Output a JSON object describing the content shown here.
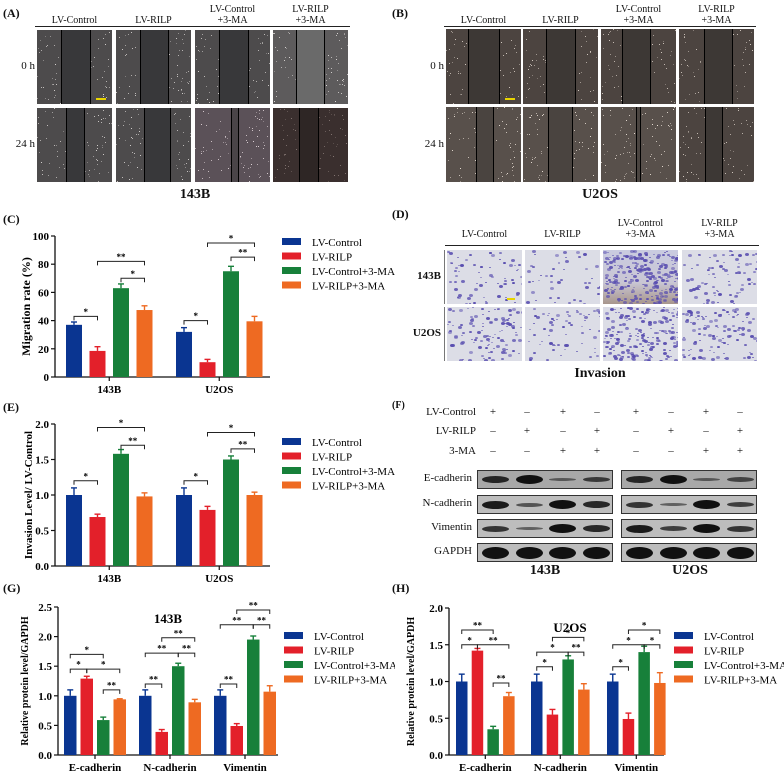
{
  "colors": {
    "lv_control": "#0a3591",
    "lv_rilp": "#e3202a",
    "lv_control_3ma": "#17803a",
    "lv_rilp_3ma": "#ee6a22",
    "scale_bar": "#e8d400"
  },
  "groups": [
    "LV-Control",
    "LV-RILP",
    "LV-Control\n+3-MA",
    "LV-RILP\n+3-MA"
  ],
  "panel_a": {
    "label": "(A)",
    "columns": [
      "LV-Control",
      "LV-RILP",
      "LV-Control",
      "LV-RILP"
    ],
    "columns_sub": [
      "",
      "",
      "+3-MA",
      "+3-MA"
    ],
    "rows": [
      "0 h",
      "24 h"
    ],
    "title": "143B"
  },
  "panel_b": {
    "label": "(B)",
    "columns": [
      "LV-Control",
      "LV-RILP",
      "LV-Control",
      "LV-RILP"
    ],
    "columns_sub": [
      "",
      "",
      "+3-MA",
      "+3-MA"
    ],
    "rows": [
      "0 h",
      "24 h"
    ],
    "title": "U2OS"
  },
  "panel_c": {
    "label": "(C)"
  },
  "panel_d": {
    "label": "(D)",
    "columns": [
      "LV-Control",
      "LV-RILP",
      "LV-Control",
      "LV-RILP"
    ],
    "columns_sub": [
      "",
      "",
      "+3-MA",
      "+3-MA"
    ],
    "rows": [
      "143B",
      "U2OS"
    ],
    "title": "Invasion"
  },
  "panel_e": {
    "label": "(E)"
  },
  "panel_f": {
    "label": "(F)",
    "conditions": [
      {
        "name": "LV-Control",
        "signs": [
          "+",
          "–",
          "+",
          "–",
          "+",
          "–",
          "+",
          "–"
        ]
      },
      {
        "name": "LV-RILP",
        "signs": [
          "–",
          "+",
          "–",
          "+",
          "–",
          "+",
          "–",
          "+"
        ]
      },
      {
        "name": "3-MA",
        "signs": [
          "–",
          "–",
          "+",
          "+",
          "–",
          "–",
          "+",
          "+"
        ]
      }
    ],
    "proteins": [
      "E-cadherin",
      "N-cadherin",
      "Vimentin",
      "GAPDH"
    ],
    "cell_lines": [
      "143B",
      "U2OS"
    ]
  },
  "panel_g": {
    "label": "(G)"
  },
  "panel_h": {
    "label": "(H)"
  },
  "legend": [
    "LV-Control",
    "LV-RILP",
    "LV-Control+3-MA",
    "LV-RILP+3-MA"
  ],
  "chart_data": [
    {
      "id": "C",
      "type": "bar",
      "title": "",
      "xlabel": "",
      "ylabel": "Migration rate (%)",
      "categories": [
        "143B",
        "U2OS"
      ],
      "ylim": [
        0,
        100
      ],
      "yticks": [
        0,
        20,
        40,
        60,
        80,
        100
      ],
      "series": [
        {
          "name": "LV-Control",
          "values": [
            37,
            32
          ],
          "errors": [
            2,
            3
          ]
        },
        {
          "name": "LV-RILP",
          "values": [
            18.5,
            10.5
          ],
          "errors": [
            3,
            2
          ]
        },
        {
          "name": "LV-Control+3-MA",
          "values": [
            63,
            75
          ],
          "errors": [
            3,
            3.5
          ]
        },
        {
          "name": "LV-RILP+3-MA",
          "values": [
            47.5,
            39.5
          ],
          "errors": [
            3,
            3.5
          ]
        }
      ],
      "annotations": [
        {
          "cat": 0,
          "from": 0,
          "to": 1,
          "y": 43,
          "text": "*"
        },
        {
          "cat": 0,
          "from": 1,
          "to": 3,
          "y": 82,
          "text": "**"
        },
        {
          "cat": 0,
          "from": 2,
          "to": 3,
          "y": 70,
          "text": "*"
        },
        {
          "cat": 1,
          "from": 0,
          "to": 1,
          "y": 40,
          "text": "*"
        },
        {
          "cat": 1,
          "from": 1,
          "to": 3,
          "y": 95,
          "text": "*"
        },
        {
          "cat": 1,
          "from": 2,
          "to": 3,
          "y": 85,
          "text": "**"
        }
      ],
      "legend_position": "right",
      "grid": false
    },
    {
      "id": "E",
      "type": "bar",
      "title": "",
      "xlabel": "",
      "ylabel": "Invasion Level/ LV-Control",
      "categories": [
        "143B",
        "U2OS"
      ],
      "ylim": [
        0,
        2.0
      ],
      "yticks": [
        0.0,
        0.5,
        1.0,
        1.5,
        2.0
      ],
      "series": [
        {
          "name": "LV-Control",
          "values": [
            1.0,
            1.0
          ],
          "errors": [
            0.1,
            0.1
          ]
        },
        {
          "name": "LV-RILP",
          "values": [
            0.69,
            0.79
          ],
          "errors": [
            0.04,
            0.05
          ]
        },
        {
          "name": "LV-Control+3-MA",
          "values": [
            1.58,
            1.5
          ],
          "errors": [
            0.06,
            0.05
          ]
        },
        {
          "name": "LV-RILP+3-MA",
          "values": [
            0.98,
            1.0
          ],
          "errors": [
            0.05,
            0.04
          ]
        }
      ],
      "annotations": [
        {
          "cat": 0,
          "from": 0,
          "to": 1,
          "y": 1.2,
          "text": "*"
        },
        {
          "cat": 0,
          "from": 1,
          "to": 3,
          "y": 1.95,
          "text": "*"
        },
        {
          "cat": 0,
          "from": 2,
          "to": 3,
          "y": 1.7,
          "text": "**"
        },
        {
          "cat": 1,
          "from": 0,
          "to": 1,
          "y": 1.2,
          "text": "*"
        },
        {
          "cat": 1,
          "from": 1,
          "to": 3,
          "y": 1.88,
          "text": "*"
        },
        {
          "cat": 1,
          "from": 2,
          "to": 3,
          "y": 1.65,
          "text": "**"
        }
      ],
      "legend_position": "right",
      "grid": false
    },
    {
      "id": "G",
      "type": "bar",
      "title": "143B",
      "xlabel": "",
      "ylabel": "Relative protein level/GAPDH",
      "categories": [
        "E-cadherin",
        "N-cadherin",
        "Vimentin"
      ],
      "ylim": [
        0,
        2.5
      ],
      "yticks": [
        0.0,
        0.5,
        1.0,
        1.5,
        2.0,
        2.5
      ],
      "series": [
        {
          "name": "LV-Control",
          "values": [
            1.0,
            1.0,
            1.0
          ],
          "errors": [
            0.1,
            0.1,
            0.1
          ]
        },
        {
          "name": "LV-RILP",
          "values": [
            1.29,
            0.39,
            0.49
          ],
          "errors": [
            0.04,
            0.04,
            0.04
          ]
        },
        {
          "name": "LV-Control+3-MA",
          "values": [
            0.59,
            1.5,
            1.95
          ],
          "errors": [
            0.05,
            0.05,
            0.06
          ]
        },
        {
          "name": "LV-RILP+3-MA",
          "values": [
            0.94,
            0.89,
            1.07
          ],
          "errors": [
            0.01,
            0.05,
            0.1
          ]
        }
      ],
      "annotations": [
        {
          "cat": 0,
          "from": 0,
          "to": 1,
          "y": 1.45,
          "text": "*"
        },
        {
          "cat": 0,
          "from": 0,
          "to": 2,
          "y": 1.7,
          "text": "*"
        },
        {
          "cat": 0,
          "from": 1,
          "to": 3,
          "y": 1.45,
          "text": "*"
        },
        {
          "cat": 0,
          "from": 2,
          "to": 3,
          "y": 1.1,
          "text": "**"
        },
        {
          "cat": 1,
          "from": 0,
          "to": 1,
          "y": 1.2,
          "text": "**"
        },
        {
          "cat": 1,
          "from": 0,
          "to": 2,
          "y": 1.72,
          "text": "**"
        },
        {
          "cat": 1,
          "from": 2,
          "to": 3,
          "y": 1.72,
          "text": "**"
        },
        {
          "cat": 1,
          "from": 1,
          "to": 3,
          "y": 1.98,
          "text": "**"
        },
        {
          "cat": 2,
          "from": 0,
          "to": 1,
          "y": 1.2,
          "text": "**"
        },
        {
          "cat": 2,
          "from": 0,
          "to": 2,
          "y": 2.2,
          "text": "**"
        },
        {
          "cat": 2,
          "from": 2,
          "to": 3,
          "y": 2.2,
          "text": "**"
        },
        {
          "cat": 2,
          "from": 1,
          "to": 3,
          "y": 2.45,
          "text": "**"
        }
      ],
      "legend_position": "right",
      "grid": false
    },
    {
      "id": "H",
      "type": "bar",
      "title": "U2OS",
      "xlabel": "",
      "ylabel": "Relative protein level/GAPDH",
      "categories": [
        "E-cadherin",
        "N-cadherin",
        "Vimentin"
      ],
      "ylim": [
        0,
        2.0
      ],
      "yticks": [
        0.0,
        0.5,
        1.0,
        1.5,
        2.0
      ],
      "series": [
        {
          "name": "LV-Control",
          "values": [
            1.0,
            1.0,
            1.0
          ],
          "errors": [
            0.1,
            0.1,
            0.1
          ]
        },
        {
          "name": "LV-RILP",
          "values": [
            1.42,
            0.55,
            0.49
          ],
          "errors": [
            0.03,
            0.07,
            0.08
          ]
        },
        {
          "name": "LV-Control+3-MA",
          "values": [
            0.35,
            1.3,
            1.4
          ],
          "errors": [
            0.04,
            0.05,
            0.08
          ]
        },
        {
          "name": "LV-RILP+3-MA",
          "values": [
            0.8,
            0.89,
            0.98
          ],
          "errors": [
            0.05,
            0.08,
            0.14
          ]
        }
      ],
      "annotations": [
        {
          "cat": 0,
          "from": 0,
          "to": 1,
          "y": 1.5,
          "text": "*"
        },
        {
          "cat": 0,
          "from": 0,
          "to": 2,
          "y": 1.7,
          "text": "**"
        },
        {
          "cat": 0,
          "from": 1,
          "to": 3,
          "y": 1.5,
          "text": "**"
        },
        {
          "cat": 0,
          "from": 2,
          "to": 3,
          "y": 0.98,
          "text": "**"
        },
        {
          "cat": 1,
          "from": 0,
          "to": 1,
          "y": 1.2,
          "text": "*"
        },
        {
          "cat": 1,
          "from": 0,
          "to": 2,
          "y": 1.4,
          "text": "*"
        },
        {
          "cat": 1,
          "from": 2,
          "to": 3,
          "y": 1.4,
          "text": "**"
        },
        {
          "cat": 1,
          "from": 1,
          "to": 3,
          "y": 1.6,
          "text": "*"
        },
        {
          "cat": 2,
          "from": 0,
          "to": 1,
          "y": 1.2,
          "text": "*"
        },
        {
          "cat": 2,
          "from": 0,
          "to": 2,
          "y": 1.5,
          "text": "*"
        },
        {
          "cat": 2,
          "from": 2,
          "to": 3,
          "y": 1.5,
          "text": "*"
        },
        {
          "cat": 2,
          "from": 1,
          "to": 3,
          "y": 1.7,
          "text": "*"
        }
      ],
      "legend_position": "right",
      "grid": false
    }
  ]
}
